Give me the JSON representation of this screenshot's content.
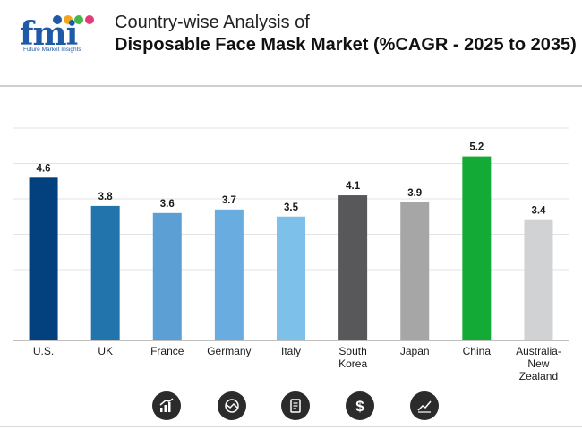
{
  "header": {
    "logo_text": "fmi",
    "logo_tagline": "Future Market Insights",
    "title_line1": "Country-wise Analysis of",
    "title_line2": "Disposable Face Mask Market (%CAGR - 2025 to 2035)"
  },
  "colors": {
    "bars": [
      "#02417e",
      "#2275ac",
      "#5b9fd4",
      "#69ade0",
      "#7dc1ea",
      "#58585a",
      "#a6a6a6",
      "#13aa35",
      "#d0d2d3"
    ],
    "gridline": "#e3e3e3",
    "axis": "#9b9b9b",
    "label": "#1a1a1a"
  },
  "chart_data": {
    "type": "bar",
    "title": "Disposable Face Mask Market (%CAGR - 2025 to 2035)",
    "categories": [
      [
        "U.S."
      ],
      [
        "UK"
      ],
      [
        "France"
      ],
      [
        "Germany"
      ],
      [
        "Italy"
      ],
      [
        "South",
        "Korea"
      ],
      [
        "Japan"
      ],
      [
        "China"
      ],
      [
        "Australia-",
        "New",
        "Zealand"
      ]
    ],
    "values": [
      4.6,
      3.8,
      3.6,
      3.7,
      3.5,
      4.1,
      3.9,
      5.2,
      3.4
    ],
    "value_labels": [
      "4.6",
      "3.8",
      "3.6",
      "3.7",
      "3.5",
      "4.1",
      "3.9",
      "5.2",
      "3.4"
    ],
    "xlabel": "",
    "ylabel": "",
    "ylim": [
      0,
      6
    ],
    "grid": true,
    "legend": "none"
  },
  "footer_icons": [
    "bar-growth-icon",
    "globe-arrow-icon",
    "document-icon",
    "dollar-icon",
    "trend-chart-icon"
  ]
}
